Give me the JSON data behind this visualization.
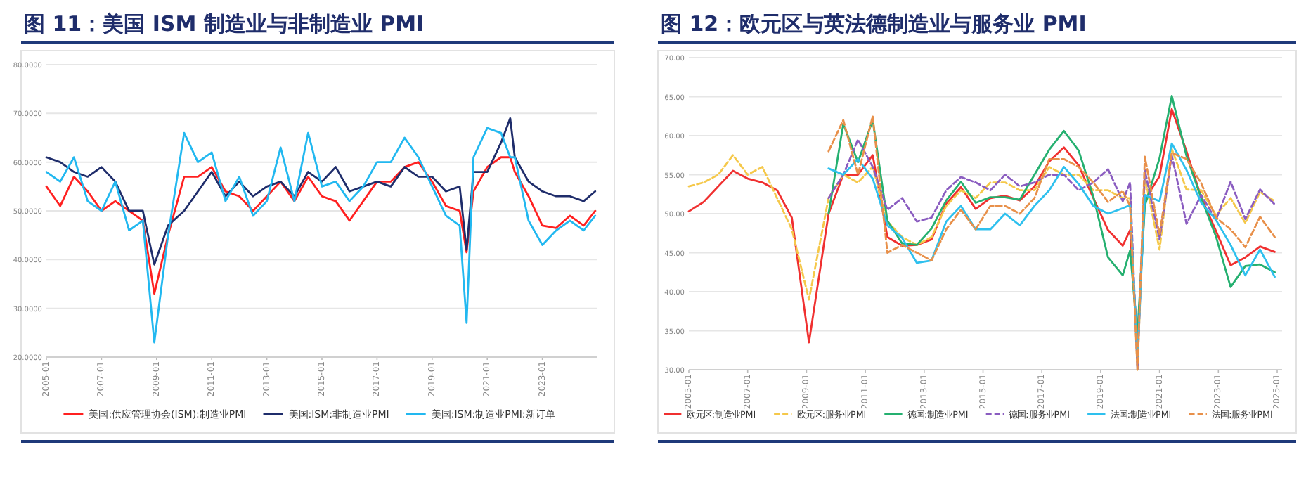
{
  "chart_data": [
    {
      "type": "line",
      "title": "图 11：美国 ISM 制造业与非制造业 PMI",
      "x": [
        "2005-01",
        "2005-07",
        "2006-01",
        "2006-07",
        "2007-01",
        "2007-07",
        "2008-01",
        "2008-07",
        "2008-12",
        "2009-06",
        "2010-01",
        "2010-07",
        "2011-01",
        "2011-07",
        "2012-01",
        "2012-07",
        "2013-01",
        "2013-07",
        "2014-01",
        "2014-07",
        "2015-01",
        "2015-07",
        "2016-01",
        "2016-07",
        "2017-01",
        "2017-07",
        "2018-01",
        "2018-07",
        "2019-01",
        "2019-07",
        "2020-01",
        "2020-04",
        "2020-07",
        "2021-01",
        "2021-07",
        "2021-11",
        "2022-01",
        "2022-07",
        "2023-01",
        "2023-07",
        "2024-01",
        "2024-07",
        "2024-12"
      ],
      "xlim": [
        "2005-01",
        "2025-01"
      ],
      "ylim": [
        20,
        80
      ],
      "xticks": [
        {
          "value": "2005-01",
          "label": "2005-01"
        },
        {
          "value": "2007-01",
          "label": "2007-01"
        },
        {
          "value": "2009-01",
          "label": "2009-01"
        },
        {
          "value": "2011-01",
          "label": "2011-01"
        },
        {
          "value": "2013-01",
          "label": "2013-01"
        },
        {
          "value": "2015-01",
          "label": "2015-01"
        },
        {
          "value": "2017-01",
          "label": "2017-01"
        },
        {
          "value": "2019-01",
          "label": "2019-01"
        },
        {
          "value": "2021-01",
          "label": "2021-01"
        },
        {
          "value": "2023-01",
          "label": "2023-01"
        }
      ],
      "yticks": [
        {
          "value": 20,
          "label": "20.0000"
        },
        {
          "value": 30,
          "label": "30.0000"
        },
        {
          "value": 40,
          "label": "40.0000"
        },
        {
          "value": 50,
          "label": "50.0000"
        },
        {
          "value": 60,
          "label": "60.0000"
        },
        {
          "value": 70,
          "label": "70.0000"
        },
        {
          "value": 80,
          "label": "80.0000"
        }
      ],
      "grid": "y",
      "legend": "bottom",
      "series": [
        {
          "name": "美国:供应管理协会(ISM):制造业PMI",
          "color": "#ff2020",
          "values": [
            55,
            51,
            57,
            54,
            50,
            52,
            50,
            48,
            33,
            45,
            57,
            57,
            59,
            54,
            53,
            50,
            53,
            56,
            52,
            57,
            53,
            52,
            48,
            52,
            56,
            56,
            59,
            60,
            56,
            51,
            50,
            41.5,
            54,
            59,
            61,
            61,
            58,
            53,
            47,
            46.5,
            49,
            47,
            50
          ]
        },
        {
          "name": "美国:ISM:非制造业PMI",
          "color": "#1f2d6b",
          "values": [
            61,
            60,
            58,
            57,
            59,
            56,
            50,
            50,
            39,
            47,
            50,
            54,
            58,
            53,
            56,
            53,
            55,
            56,
            53,
            58,
            56,
            59,
            54,
            55,
            56,
            55,
            59,
            57,
            57,
            54,
            55,
            42,
            58,
            58,
            64,
            69,
            61,
            56,
            54,
            53,
            53,
            52,
            54
          ]
        },
        {
          "name": "美国:ISM:制造业PMI:新订单",
          "color": "#22b8f0",
          "values": [
            58,
            56,
            61,
            52,
            50,
            56,
            46,
            48,
            23,
            45,
            66,
            60,
            62,
            52,
            57,
            49,
            52,
            63,
            52,
            66,
            55,
            56,
            52,
            55,
            60,
            60,
            65,
            61,
            55,
            49,
            47,
            27,
            61,
            67,
            66,
            61,
            61,
            48,
            43,
            46,
            48,
            46,
            49
          ]
        }
      ]
    },
    {
      "type": "line",
      "title": "图 12：欧元区与英法德制造业与服务业 PMI",
      "x": [
        "2005-01",
        "2005-07",
        "2006-01",
        "2006-07",
        "2007-01",
        "2007-07",
        "2008-01",
        "2008-07",
        "2009-02",
        "2009-10",
        "2010-04",
        "2010-10",
        "2011-04",
        "2011-10",
        "2012-04",
        "2012-10",
        "2013-04",
        "2013-10",
        "2014-04",
        "2014-10",
        "2015-04",
        "2015-10",
        "2016-04",
        "2016-10",
        "2017-04",
        "2017-10",
        "2018-04",
        "2018-10",
        "2019-04",
        "2019-10",
        "2020-01",
        "2020-04",
        "2020-07",
        "2021-01",
        "2021-06",
        "2021-12",
        "2022-06",
        "2022-12",
        "2023-06",
        "2023-12",
        "2024-06",
        "2024-12"
      ],
      "xlim": [
        "2005-01",
        "2025-03"
      ],
      "ylim": [
        30,
        70
      ],
      "xticks": [
        {
          "value": "2005-01",
          "label": "2005-01"
        },
        {
          "value": "2007-01",
          "label": "2007-01"
        },
        {
          "value": "2009-01",
          "label": "2009-01"
        },
        {
          "value": "2011-01",
          "label": "2011-01"
        },
        {
          "value": "2013-01",
          "label": "2013-01"
        },
        {
          "value": "2015-01",
          "label": "2015-01"
        },
        {
          "value": "2017-01",
          "label": "2017-01"
        },
        {
          "value": "2019-01",
          "label": "2019-01"
        },
        {
          "value": "2021-01",
          "label": "2021-01"
        },
        {
          "value": "2023-01",
          "label": "2023-01"
        },
        {
          "value": "2025-01",
          "label": "2025-01"
        }
      ],
      "yticks": [
        {
          "value": 30,
          "label": "30.00"
        },
        {
          "value": 35,
          "label": "35.00"
        },
        {
          "value": 40,
          "label": "40.00"
        },
        {
          "value": 45,
          "label": "45.00"
        },
        {
          "value": 50,
          "label": "50.00"
        },
        {
          "value": 55,
          "label": "55.00"
        },
        {
          "value": 60,
          "label": "60.00"
        },
        {
          "value": 65,
          "label": "65.00"
        },
        {
          "value": 70,
          "label": "70.00"
        }
      ],
      "grid": "y",
      "legend": "bottom",
      "series": [
        {
          "name": "欧元区:制造业PMI",
          "color": "#f03030",
          "values": [
            50.3,
            51.5,
            53.5,
            55.5,
            54.5,
            54,
            53,
            49.5,
            33.5,
            50,
            55,
            55,
            57.5,
            47,
            45.9,
            46,
            46.7,
            51.3,
            53.4,
            50.6,
            52,
            52.3,
            51.7,
            53.5,
            56.7,
            58.5,
            56.2,
            52,
            47.9,
            45.9,
            47.9,
            33.4,
            51.8,
            54.8,
            63.4,
            58,
            52.1,
            47.8,
            43.4,
            44.4,
            45.8,
            45.1
          ]
        },
        {
          "name": "欧元区:服务业PMI",
          "color": "#f5c84a",
          "line_style": "dashed",
          "values": [
            53.5,
            54,
            55,
            57.5,
            55,
            56,
            52,
            48,
            39,
            52,
            55,
            54,
            56,
            49,
            47,
            46,
            47,
            51,
            53,
            52,
            54,
            54,
            53,
            53,
            56,
            55,
            55,
            53,
            53,
            52,
            52,
            30,
            54.7,
            45.4,
            58.3,
            53.1,
            53,
            49.8,
            52,
            48.8,
            52.8,
            51.6
          ]
        },
        {
          "name": "德国:制造业PMI",
          "color": "#25b070",
          "values": [
            null,
            null,
            null,
            null,
            null,
            null,
            null,
            null,
            null,
            50,
            61.5,
            56.6,
            62,
            49.1,
            46.2,
            46,
            48.1,
            51.7,
            54.1,
            51.4,
            52.1,
            52.1,
            51.8,
            55,
            58.2,
            60.6,
            58.1,
            52.2,
            44.4,
            42.1,
            45.3,
            34.5,
            51,
            57.1,
            65.1,
            57.4,
            52,
            47.1,
            40.6,
            43.3,
            43.5,
            42.5
          ]
        },
        {
          "name": "德国:服务业PMI",
          "color": "#8a5cc0",
          "line_style": "dashed",
          "values": [
            null,
            null,
            null,
            null,
            null,
            null,
            null,
            null,
            null,
            52,
            55,
            59.5,
            56,
            50.5,
            52,
            49,
            49.5,
            53,
            54.7,
            54,
            53,
            55,
            53.5,
            54,
            55,
            55,
            53,
            54,
            55.7,
            51.6,
            54,
            30,
            55.6,
            46.7,
            57.5,
            48.7,
            52.4,
            49.2,
            54.1,
            49.3,
            53.1,
            51.2
          ]
        },
        {
          "name": "法国:制造业PMI",
          "color": "#2ec0ee",
          "values": [
            null,
            null,
            null,
            null,
            null,
            null,
            null,
            null,
            null,
            55.8,
            55,
            57,
            54.5,
            48.5,
            46.9,
            43.7,
            44,
            49,
            51,
            48,
            48,
            50,
            48.5,
            51,
            53,
            56,
            53.8,
            51,
            50,
            50.7,
            51.1,
            31.5,
            52.4,
            51.6,
            59,
            55.6,
            51.4,
            49.2,
            46,
            42.1,
            45.4,
            41.9
          ]
        },
        {
          "name": "法国:服务业PMI",
          "color": "#e8904a",
          "line_style": "dashed",
          "values": [
            null,
            null,
            null,
            null,
            null,
            null,
            null,
            null,
            null,
            58,
            62,
            55,
            62.5,
            45,
            46,
            45,
            44,
            48,
            50.5,
            48,
            51,
            51,
            50,
            52,
            57,
            57,
            56,
            54,
            51.5,
            52.9,
            51,
            30,
            57.3,
            47.3,
            57.8,
            57,
            53.9,
            49.5,
            48,
            45.7,
            49.6,
            47
          ]
        }
      ]
    }
  ]
}
